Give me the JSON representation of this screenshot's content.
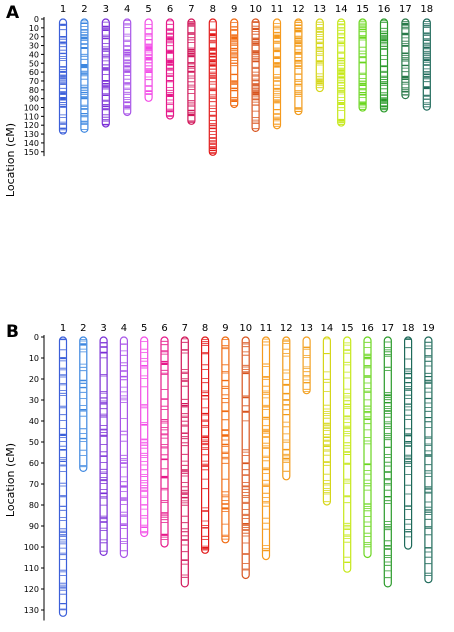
{
  "y_axis_label": "Location (cM)",
  "panels": [
    {
      "letter": "A",
      "ticks": [
        0,
        10,
        20,
        30,
        40,
        50,
        60,
        70,
        80,
        90,
        100,
        110,
        120,
        130,
        140,
        150
      ],
      "chromosomes": [
        {
          "label": "1",
          "length": 130,
          "color": "#3b5fd9"
        },
        {
          "label": "2",
          "length": 128,
          "color": "#3d87e0"
        },
        {
          "label": "3",
          "length": 122,
          "color": "#7a2fd6"
        },
        {
          "label": "4",
          "length": 109,
          "color": "#a855e8"
        },
        {
          "label": "5",
          "length": 93,
          "color": "#f24ce6"
        },
        {
          "label": "6",
          "length": 113,
          "color": "#e6198a"
        },
        {
          "label": "7",
          "length": 119,
          "color": "#d1175a"
        },
        {
          "label": "8",
          "length": 154,
          "color": "#e21a1a"
        },
        {
          "label": "9",
          "length": 100,
          "color": "#f06a10"
        },
        {
          "label": "10",
          "length": 127,
          "color": "#d8541e"
        },
        {
          "label": "11",
          "length": 124,
          "color": "#f59a1e"
        },
        {
          "label": "12",
          "length": 108,
          "color": "#f29a18"
        },
        {
          "label": "13",
          "length": 82,
          "color": "#d6d61a"
        },
        {
          "label": "14",
          "length": 121,
          "color": "#c6e81a"
        },
        {
          "label": "15",
          "length": 104,
          "color": "#6ad61e"
        },
        {
          "label": "16",
          "length": 105,
          "color": "#2a9a2a"
        },
        {
          "label": "17",
          "length": 90,
          "color": "#2a7a4a"
        },
        {
          "label": "18",
          "length": 103,
          "color": "#1e6a5a"
        }
      ]
    },
    {
      "letter": "B",
      "ticks": [
        0,
        10,
        20,
        30,
        40,
        50,
        60,
        70,
        80,
        90,
        100,
        110,
        120,
        130
      ],
      "chromosomes": [
        {
          "label": "1",
          "length": 133,
          "color": "#3b5fd9"
        },
        {
          "label": "2",
          "length": 64,
          "color": "#3d87e0"
        },
        {
          "label": "3",
          "length": 104,
          "color": "#7a2fd6"
        },
        {
          "label": "4",
          "length": 105,
          "color": "#a855e8"
        },
        {
          "label": "5",
          "length": 95,
          "color": "#f24ce6"
        },
        {
          "label": "6",
          "length": 100,
          "color": "#e6198a"
        },
        {
          "label": "7",
          "length": 119,
          "color": "#d1175a"
        },
        {
          "label": "8",
          "length": 103,
          "color": "#e21a1a"
        },
        {
          "label": "9",
          "length": 98,
          "color": "#f06a10"
        },
        {
          "label": "10",
          "length": 115,
          "color": "#d8541e"
        },
        {
          "label": "11",
          "length": 106,
          "color": "#f59a1e"
        },
        {
          "label": "12",
          "length": 68,
          "color": "#f29a18"
        },
        {
          "label": "13",
          "length": 27,
          "color": "#f2a020"
        },
        {
          "label": "14",
          "length": 80,
          "color": "#d6d61a"
        },
        {
          "label": "15",
          "length": 112,
          "color": "#c6e81a"
        },
        {
          "label": "16",
          "length": 105,
          "color": "#6ad61e"
        },
        {
          "label": "17",
          "length": 119,
          "color": "#2a9a2a"
        },
        {
          "label": "18",
          "length": 101,
          "color": "#1e6a5a"
        },
        {
          "label": "19",
          "length": 117,
          "color": "#1e6a5a"
        }
      ]
    }
  ]
}
